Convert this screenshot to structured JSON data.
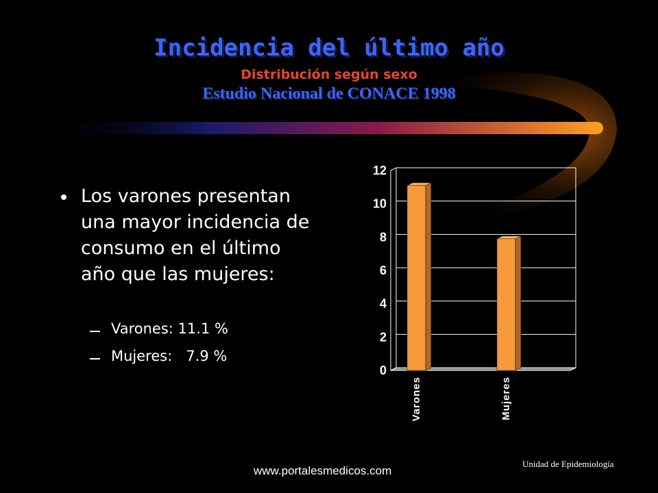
{
  "header": {
    "title": "Incidencia del último año",
    "subtitle": "Distribución según sexo",
    "source": "Estudio Nacional de CONACE 1998"
  },
  "body": {
    "bullet": "Los varones presentan una mayor incidencia de consumo en el último año que las mujeres:",
    "sub_bullets": [
      "Varones: 11.1 %",
      "Mujeres:   7.9 %"
    ]
  },
  "chart_data": {
    "type": "bar",
    "categories": [
      "Varones",
      "Mujeres"
    ],
    "values": [
      11.1,
      7.9
    ],
    "color": "#f79a3c",
    "ylim": [
      0,
      12
    ],
    "yticks": [
      0,
      2,
      4,
      6,
      8,
      10,
      12
    ],
    "grid": true
  },
  "footer": {
    "website": "www.portalesmedicos.com",
    "unit": "Unidad de Epidemiología"
  }
}
